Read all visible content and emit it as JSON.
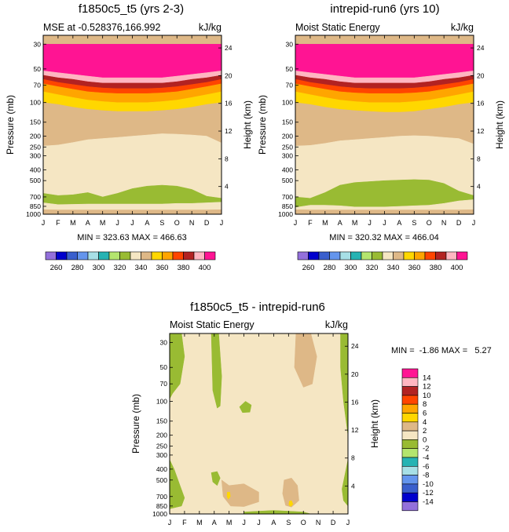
{
  "month_ticks": [
    "J",
    "F",
    "M",
    "A",
    "M",
    "J",
    "J",
    "A",
    "S",
    "O",
    "N",
    "D",
    "J"
  ],
  "pressure_axis_label": "Pressure (mb)",
  "height_axis_label": "Height (km)",
  "chart_data": [
    {
      "type": "heatmap",
      "id": "panel-a",
      "title": "f1850c5_t5 (yrs 2-3)",
      "subtitle_left": "MSE at -0.528376,166.992",
      "subtitle_right": "kJ/kg",
      "stats": "MIN = 323.63 MAX = 466.63",
      "x": "month (Jan..Jan)",
      "pressure_ticks": [
        "30",
        "50",
        "70",
        "100",
        "150",
        "200",
        "250",
        "300",
        "400",
        "500",
        "700",
        "850",
        "1000"
      ],
      "height_ticks": [
        "24",
        "20",
        "16",
        "12",
        "8",
        "4"
      ],
      "colorbar_labels": [
        "260",
        "280",
        "300",
        "320",
        "340",
        "360",
        "380",
        "400"
      ],
      "levels": [
        260,
        270,
        280,
        290,
        300,
        310,
        320,
        330,
        340,
        350,
        360,
        370,
        380,
        390,
        400
      ],
      "bands": [
        {
          "above": 400,
          "p_top": [
            30,
            30,
            30,
            30,
            30,
            30,
            30,
            30,
            30,
            30,
            30,
            30,
            30
          ],
          "p_bot": [
            52,
            54,
            56,
            58,
            60,
            60,
            60,
            60,
            60,
            58,
            56,
            54,
            52
          ]
        },
        {
          "above": 390,
          "p_bot": [
            57,
            60,
            62,
            65,
            67,
            67,
            67,
            67,
            67,
            65,
            62,
            60,
            57
          ]
        },
        {
          "above": 380,
          "p_bot": [
            62,
            66,
            69,
            72,
            74,
            75,
            75,
            75,
            74,
            72,
            69,
            66,
            62
          ]
        },
        {
          "above": 370,
          "p_bot": [
            68,
            72,
            76,
            80,
            82,
            83,
            83,
            83,
            82,
            80,
            76,
            72,
            68
          ]
        },
        {
          "above": 360,
          "p_bot": [
            80,
            85,
            90,
            95,
            98,
            100,
            100,
            100,
            98,
            95,
            90,
            85,
            80
          ]
        },
        {
          "above": 350,
          "p_bot": [
            100,
            104,
            110,
            115,
            118,
            120,
            120,
            120,
            118,
            115,
            110,
            104,
            100
          ]
        },
        {
          "above": 340,
          "p_bot": [
            245,
            240,
            228,
            215,
            210,
            205,
            200,
            195,
            190,
            192,
            195,
            200,
            230
          ]
        },
        {
          "above": 330,
          "p_bot": [
            650,
            680,
            670,
            640,
            700,
            650,
            590,
            560,
            550,
            560,
            600,
            690,
            720
          ]
        },
        {
          "above": 320,
          "p_bot": [
            790,
            820,
            815,
            810,
            810,
            810,
            810,
            810,
            810,
            800,
            800,
            790,
            780
          ]
        },
        {
          "above": 330,
          "p_bot": [
            910,
            915,
            915,
            915,
            915,
            915,
            915,
            915,
            915,
            915,
            915,
            915,
            910
          ]
        },
        {
          "above": 340,
          "p_bot": [
            1000,
            1000,
            1000,
            1000,
            1000,
            1000,
            1000,
            1000,
            1000,
            1000,
            1000,
            1000,
            1000
          ]
        }
      ]
    },
    {
      "type": "heatmap",
      "id": "panel-b",
      "title": "intrepid-run6 (yrs 10)",
      "subtitle_left": "Moist Static Energy",
      "subtitle_right": "kJ/kg",
      "stats": "MIN = 320.32 MAX = 466.04",
      "x": "month (Jan..Jan)",
      "pressure_ticks": [
        "30",
        "50",
        "70",
        "100",
        "150",
        "200",
        "250",
        "300",
        "400",
        "500",
        "700",
        "850",
        "1000"
      ],
      "height_ticks": [
        "24",
        "20",
        "16",
        "12",
        "8",
        "4"
      ],
      "colorbar_labels": [
        "260",
        "280",
        "300",
        "320",
        "340",
        "360",
        "380",
        "400"
      ],
      "levels": [
        260,
        270,
        280,
        290,
        300,
        310,
        320,
        330,
        340,
        350,
        360,
        370,
        380,
        390,
        400
      ],
      "bands": [
        {
          "above": 400,
          "p_top": [
            30,
            30,
            30,
            30,
            30,
            30,
            30,
            30,
            30,
            30,
            30,
            30,
            30
          ],
          "p_bot": [
            52,
            54,
            56,
            58,
            60,
            60,
            60,
            60,
            60,
            58,
            56,
            54,
            52
          ]
        },
        {
          "above": 390,
          "p_bot": [
            57,
            60,
            62,
            65,
            67,
            67,
            67,
            67,
            67,
            65,
            62,
            60,
            57
          ]
        },
        {
          "above": 380,
          "p_bot": [
            62,
            66,
            69,
            72,
            74,
            75,
            75,
            75,
            74,
            72,
            69,
            66,
            62
          ]
        },
        {
          "above": 370,
          "p_bot": [
            68,
            72,
            76,
            80,
            82,
            83,
            83,
            83,
            82,
            80,
            76,
            72,
            68
          ]
        },
        {
          "above": 360,
          "p_bot": [
            80,
            85,
            90,
            95,
            98,
            100,
            100,
            100,
            98,
            95,
            90,
            85,
            80
          ]
        },
        {
          "above": 350,
          "p_bot": [
            100,
            104,
            110,
            115,
            118,
            120,
            122,
            122,
            120,
            115,
            110,
            104,
            100
          ]
        },
        {
          "above": 340,
          "p_bot": [
            245,
            242,
            232,
            220,
            215,
            210,
            205,
            200,
            198,
            200,
            205,
            210,
            235
          ]
        },
        {
          "above": 330,
          "p_bot": [
            700,
            720,
            640,
            550,
            520,
            510,
            500,
            495,
            490,
            495,
            530,
            620,
            680
          ]
        },
        {
          "above": 320,
          "p_bot": [
            870,
            830,
            830,
            840,
            860,
            860,
            860,
            850,
            840,
            830,
            800,
            760,
            740
          ]
        },
        {
          "above": 330,
          "p_bot": [
            910,
            915,
            915,
            915,
            915,
            915,
            915,
            915,
            915,
            915,
            915,
            915,
            910
          ]
        },
        {
          "above": 340,
          "p_bot": [
            1000,
            1000,
            1000,
            1000,
            1000,
            1000,
            1000,
            1000,
            1000,
            1000,
            1000,
            1000,
            1000
          ]
        }
      ]
    },
    {
      "type": "heatmap",
      "id": "panel-diff",
      "title": "f1850c5_t5 - intrepid-run6",
      "subtitle_left": "Moist Static Energy",
      "subtitle_right": "kJ/kg",
      "stats": "MIN =  -1.86 MAX =   5.27",
      "x": "month (Jan..Jan)",
      "pressure_ticks": [
        "30",
        "50",
        "70",
        "100",
        "150",
        "200",
        "250",
        "300",
        "400",
        "500",
        "700",
        "850",
        "1000"
      ],
      "height_ticks": [
        "24",
        "20",
        "16",
        "12",
        "8",
        "4"
      ],
      "colorbar_labels": [
        "14",
        "12",
        "10",
        "8",
        "6",
        "4",
        "2",
        "0",
        "-2",
        "-4",
        "-6",
        "-8",
        "-10",
        "-12",
        "-14"
      ],
      "levels": [
        -16,
        -14,
        -12,
        -10,
        -8,
        -6,
        -4,
        -2,
        0,
        2,
        4,
        6,
        8,
        10,
        12,
        14,
        16
      ],
      "background_range": [
        0,
        2
      ],
      "regions": [
        {
          "range": [
            -2,
            0
          ],
          "points": [
            [
              0,
              25
            ],
            [
              0.8,
              25
            ],
            [
              1.0,
              40
            ],
            [
              0.7,
              70
            ],
            [
              0.2,
              85
            ],
            [
              0,
              95
            ]
          ]
        },
        {
          "range": [
            -2,
            0
          ],
          "points": [
            [
              2.8,
              25
            ],
            [
              3.3,
              25
            ],
            [
              3.5,
              60
            ],
            [
              3.4,
              110
            ],
            [
              3.2,
              115
            ],
            [
              2.9,
              80
            ]
          ]
        },
        {
          "range": [
            -2,
            0
          ],
          "points": [
            [
              4.7,
              112
            ],
            [
              5.1,
              100
            ],
            [
              5.5,
              108
            ],
            [
              5.4,
              125
            ],
            [
              4.9,
              126
            ]
          ]
        },
        {
          "range": [
            -2,
            0
          ],
          "points": [
            [
              11.5,
              25
            ],
            [
              12,
              25
            ],
            [
              12,
              200
            ],
            [
              11.7,
              100
            ],
            [
              11.5,
              50
            ]
          ]
        },
        {
          "range": [
            -2,
            0
          ],
          "points": [
            [
              0,
              330
            ],
            [
              0.3,
              400
            ],
            [
              0.7,
              560
            ],
            [
              1.0,
              720
            ],
            [
              0.8,
              850
            ],
            [
              0,
              900
            ]
          ]
        },
        {
          "range": [
            -2,
            0
          ],
          "points": [
            [
              11.6,
              600
            ],
            [
              12,
              330
            ],
            [
              12,
              850
            ],
            [
              11.7,
              760
            ]
          ]
        },
        {
          "range": [
            -2,
            0
          ],
          "points": [
            [
              2.8,
              430
            ],
            [
              3.2,
              420
            ],
            [
              3.4,
              480
            ],
            [
              3.2,
              560
            ],
            [
              2.9,
              520
            ]
          ]
        },
        {
          "range": [
            -2,
            0
          ],
          "points": [
            [
              5.0,
              960
            ],
            [
              7.0,
              930
            ],
            [
              9.0,
              960
            ],
            [
              9.5,
              1000
            ],
            [
              5.0,
              1000
            ]
          ]
        },
        {
          "range": [
            2,
            4
          ],
          "points": [
            [
              8.5,
              25
            ],
            [
              9.5,
              25
            ],
            [
              9.9,
              40
            ],
            [
              9.6,
              70
            ],
            [
              9.0,
              75
            ],
            [
              8.4,
              50
            ]
          ]
        },
        {
          "range": [
            2,
            4
          ],
          "points": [
            [
              3.5,
              500
            ],
            [
              4.0,
              560
            ],
            [
              5.0,
              540
            ],
            [
              6.0,
              640
            ],
            [
              6.0,
              780
            ],
            [
              5.0,
              860
            ],
            [
              4.1,
              850
            ],
            [
              3.6,
              700
            ]
          ]
        },
        {
          "range": [
            2,
            4
          ],
          "points": [
            [
              7.7,
              500
            ],
            [
              8.2,
              480
            ],
            [
              8.6,
              560
            ],
            [
              8.7,
              760
            ],
            [
              8.2,
              870
            ],
            [
              7.8,
              840
            ],
            [
              7.6,
              660
            ]
          ]
        },
        {
          "range": [
            4,
            6
          ],
          "points": [
            [
              3.88,
              640
            ],
            [
              4.05,
              640
            ],
            [
              4.08,
              700
            ],
            [
              3.95,
              740
            ],
            [
              3.86,
              700
            ]
          ]
        },
        {
          "range": [
            4,
            6
          ],
          "points": [
            [
              8.05,
              770
            ],
            [
              8.2,
              760
            ],
            [
              8.3,
              820
            ],
            [
              8.15,
              860
            ],
            [
              8.02,
              830
            ]
          ]
        }
      ]
    }
  ],
  "colors": {
    "ncl_palette": [
      "#9370db",
      "#0000cd",
      "#3a5fcd",
      "#6495ed",
      "#a7dfe6",
      "#26b3b3",
      "#b4e56e",
      "#99bb33",
      "#f5e6c3",
      "#deb887",
      "#ffd700",
      "#ffa500",
      "#ff4500",
      "#b22222",
      "#ffb6c1",
      "#ff1493"
    ]
  }
}
